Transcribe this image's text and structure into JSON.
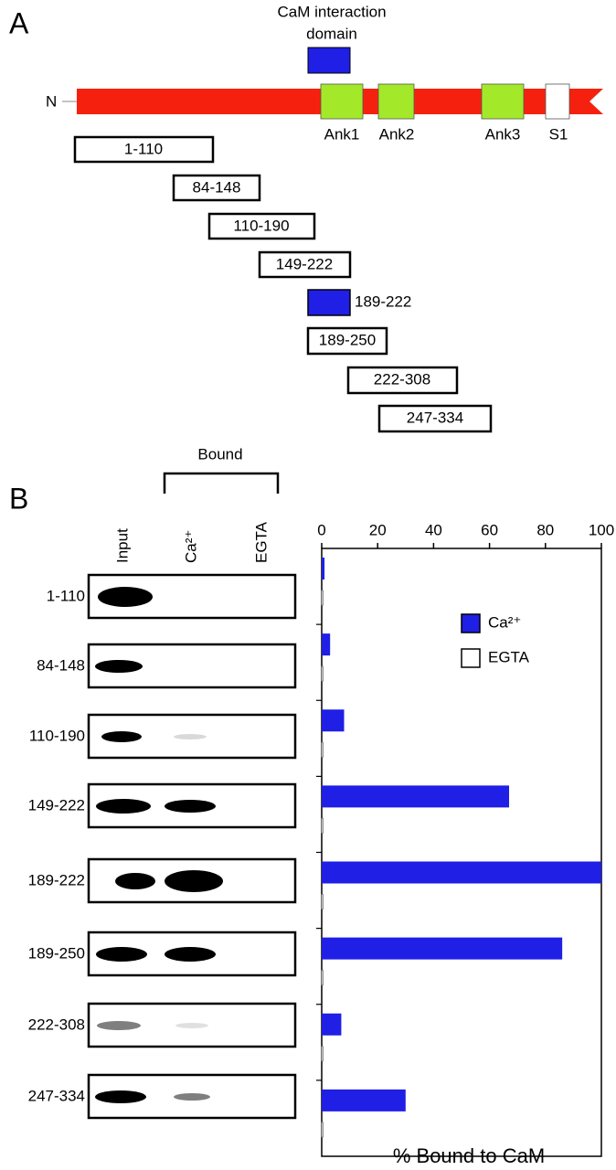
{
  "panel_a": {
    "label": "A",
    "domain_label": [
      "CaM interaction",
      "domain"
    ],
    "n_terminus": "N",
    "domains": [
      "Ank1",
      "Ank2",
      "Ank3",
      "S1"
    ],
    "fragments": [
      "1-110",
      "84-148",
      "110-190",
      "149-222",
      "189-222",
      "189-250",
      "222-308",
      "247-334"
    ]
  },
  "panel_b": {
    "label": "B",
    "bracket_label": "Bound",
    "columns": [
      "Input",
      "Ca²⁺",
      "EGTA"
    ]
  },
  "chart_data": {
    "type": "bar",
    "orientation": "horizontal",
    "xlabel": "% Bound to CaM",
    "categories": [
      "1-110",
      "84-148",
      "110-190",
      "149-222",
      "189-222",
      "189-250",
      "222-308",
      "247-334"
    ],
    "series": [
      {
        "name": "Ca²⁺",
        "color": "#1f1fe6",
        "values": [
          1,
          3,
          8,
          67,
          100,
          86,
          7,
          30
        ]
      },
      {
        "name": "EGTA",
        "color": "#ffffff",
        "values": [
          0.5,
          0.5,
          0.5,
          0.5,
          0.5,
          0.5,
          0.5,
          0.5
        ]
      }
    ],
    "xlim": [
      0,
      100
    ],
    "xticks": [
      0,
      20,
      40,
      60,
      80,
      100
    ],
    "legend": "upper right"
  }
}
